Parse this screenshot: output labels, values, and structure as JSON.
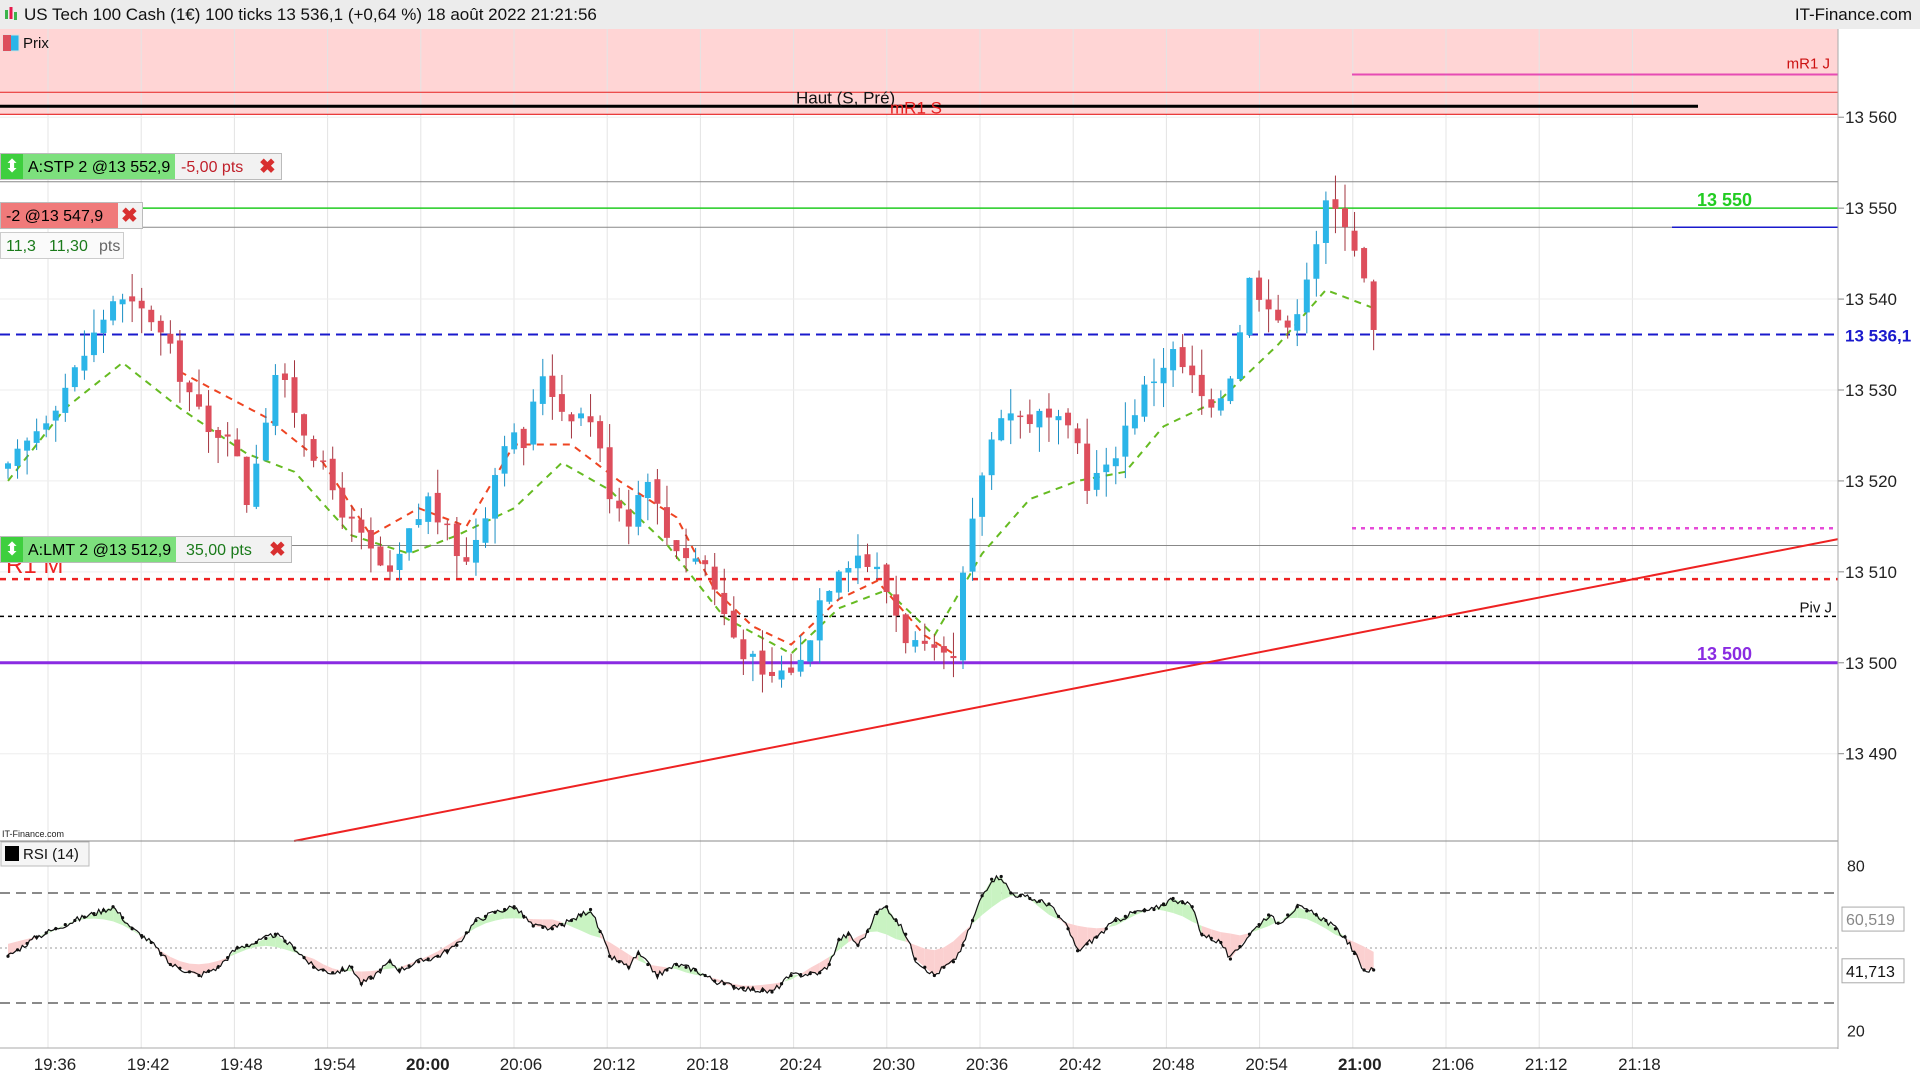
{
  "header": {
    "title": "US Tech 100 Cash (1€) 100 ticks 13 536,1 (+0,64 %) 18 août 2022 21:21:56",
    "brand": "IT-Finance.com"
  },
  "legend": {
    "price_label": "Prix",
    "rsi_label": "RSI (14)",
    "watermark": "IT-Finance.com"
  },
  "colors": {
    "bull": "#2bb5e8",
    "bear": "#dd4e5c",
    "resistance_zone": "#ffd5d5",
    "avg_fast": "#ee4422",
    "avg_slow": "#66bb22",
    "trendline": "#ee2222",
    "level_13550": "#22cc22",
    "level_13500": "#8a2be2",
    "current": "#1a1acc"
  },
  "orders": [
    {
      "type": "stop",
      "label": "A:STP 2 @13 552,9",
      "delta": "-5,00 pts"
    },
    {
      "type": "position",
      "label": "-2 @13 547,9",
      "pnl": "11,3",
      "pnl_pts": "11,30",
      "pnl_unit": "pts"
    },
    {
      "type": "limit",
      "label": "A:LMT 2 @13 512,9",
      "delta": "35,00 pts"
    }
  ],
  "annotations": {
    "haut": "Haut (S, Pré)",
    "mr1s": "mR1 S",
    "mr1j": "mR1 J",
    "r1m": "R1 M",
    "pivj": "Piv J",
    "level_13550": "13 550",
    "level_13500": "13 500",
    "current_price": "13 536,1",
    "rsi_a": "60,519",
    "rsi_b": "41,713"
  },
  "chart_data": [
    {
      "type": "candlestick",
      "title": "US Tech 100 Cash (1€) 100 ticks",
      "x_tick_labels": [
        "19:36",
        "19:42",
        "19:48",
        "19:54",
        "20:00",
        "20:06",
        "20:12",
        "20:18",
        "20:24",
        "20:30",
        "20:36",
        "20:42",
        "20:48",
        "20:54",
        "21:00",
        "21:06",
        "21:12",
        "21:18"
      ],
      "y_tick_labels": [
        "13 490",
        "13 500",
        "13 510",
        "13 520",
        "13 530",
        "13 540",
        "13 550",
        "13 560"
      ],
      "ylim": [
        13480.4,
        13569.7
      ],
      "price_path": [
        [
          0,
          13521
        ],
        [
          7,
          13532
        ],
        [
          11,
          13540
        ],
        [
          15,
          13538
        ],
        [
          18,
          13532
        ],
        [
          21,
          13525
        ],
        [
          23,
          13526
        ],
        [
          25,
          13518
        ],
        [
          28,
          13532
        ],
        [
          30,
          13528
        ],
        [
          33,
          13521
        ],
        [
          36,
          13515
        ],
        [
          38,
          13512
        ],
        [
          40,
          13509
        ],
        [
          42,
          13514
        ],
        [
          44,
          13518
        ],
        [
          46,
          13514
        ],
        [
          48,
          13511
        ],
        [
          50,
          13517
        ],
        [
          52,
          13525
        ],
        [
          54,
          13524
        ],
        [
          56,
          13532
        ],
        [
          58,
          13528
        ],
        [
          61,
          13527
        ],
        [
          63,
          13519
        ],
        [
          65,
          13516
        ],
        [
          67,
          13521
        ],
        [
          68,
          13517
        ],
        [
          69,
          13514
        ],
        [
          71,
          13512
        ],
        [
          73,
          13511
        ],
        [
          74,
          13508
        ],
        [
          76,
          13503
        ],
        [
          78,
          13500
        ],
        [
          79,
          13498
        ],
        [
          81,
          13499
        ],
        [
          83,
          13500
        ],
        [
          85,
          13507
        ],
        [
          87,
          13511
        ],
        [
          89,
          13512
        ],
        [
          91,
          13510
        ],
        [
          92,
          13508
        ],
        [
          94,
          13503
        ],
        [
          96,
          13501
        ],
        [
          98,
          13500
        ],
        [
          99,
          13500
        ],
        [
          100,
          13509
        ],
        [
          102,
          13521
        ],
        [
          104,
          13528
        ],
        [
          106,
          13527
        ],
        [
          108,
          13527
        ],
        [
          110,
          13526
        ],
        [
          112,
          13524
        ],
        [
          113,
          13520
        ],
        [
          115,
          13521
        ],
        [
          117,
          13526
        ],
        [
          119,
          13530
        ],
        [
          121,
          13533
        ],
        [
          122,
          13534
        ],
        [
          124,
          13531
        ],
        [
          126,
          13527
        ],
        [
          128,
          13532
        ],
        [
          130,
          13542
        ],
        [
          132,
          13540
        ],
        [
          134,
          13536
        ],
        [
          136,
          13543
        ],
        [
          138,
          13550
        ],
        [
          140,
          13549
        ],
        [
          141,
          13546
        ],
        [
          142,
          13542
        ],
        [
          143,
          13536
        ]
      ],
      "avg_fast_path": [
        [
          18,
          13532
        ],
        [
          27,
          13527
        ],
        [
          33,
          13522
        ],
        [
          38,
          13514
        ],
        [
          43,
          13517
        ],
        [
          48,
          13515
        ],
        [
          53,
          13524
        ],
        [
          59,
          13524
        ],
        [
          64,
          13520
        ],
        [
          70,
          13516
        ],
        [
          74,
          13508
        ],
        [
          78,
          13504
        ],
        [
          82,
          13502
        ],
        [
          87,
          13507
        ],
        [
          91,
          13509
        ],
        [
          96,
          13503
        ],
        [
          99,
          13501
        ]
      ],
      "avg_slow_path": [
        [
          0,
          13520
        ],
        [
          6,
          13528
        ],
        [
          12,
          13533
        ],
        [
          18,
          13528
        ],
        [
          25,
          13523
        ],
        [
          30,
          13521
        ],
        [
          36,
          13514
        ],
        [
          42,
          13512
        ],
        [
          47,
          13514
        ],
        [
          53,
          13517
        ],
        [
          58,
          13522
        ],
        [
          63,
          13519
        ],
        [
          69,
          13513
        ],
        [
          75,
          13505
        ],
        [
          82,
          13501
        ],
        [
          87,
          13506
        ],
        [
          92,
          13508
        ],
        [
          97,
          13503
        ],
        [
          102,
          13512
        ],
        [
          107,
          13518
        ],
        [
          112,
          13520
        ],
        [
          117,
          13521
        ],
        [
          121,
          13526
        ],
        [
          127,
          13529
        ],
        [
          133,
          13535
        ],
        [
          138,
          13541
        ],
        [
          143,
          13539
        ]
      ],
      "levels": {
        "haut_s_pre": 13561.2,
        "mr1_j": 13564.7,
        "stop_order": 13552.9,
        "level_13550": 13550.0,
        "position_entry": 13547.9,
        "current": 13536.1,
        "magenta_dotted": 13514.8,
        "limit_order": 13512.9,
        "r1_m": 13509.2,
        "piv_j": 13505.1,
        "level_13500": 13500.0
      },
      "trendline": [
        [
          13480.4,
          0.16
        ],
        [
          13513.6,
          1.0
        ]
      ]
    },
    {
      "type": "line",
      "title": "RSI (14)",
      "y_tick_labels": [
        "20",
        "80"
      ],
      "ylim": [
        14,
        86
      ],
      "bands": [
        30,
        50,
        70
      ],
      "rsi_path": [
        [
          0,
          47
        ],
        [
          3,
          54
        ],
        [
          7,
          60
        ],
        [
          11,
          65
        ],
        [
          13,
          57
        ],
        [
          15,
          52
        ],
        [
          17,
          44
        ],
        [
          20,
          40
        ],
        [
          22,
          43
        ],
        [
          24,
          50
        ],
        [
          26,
          52
        ],
        [
          28,
          55
        ],
        [
          30,
          50
        ],
        [
          32,
          43
        ],
        [
          34,
          41
        ],
        [
          36,
          43
        ],
        [
          37,
          37
        ],
        [
          38,
          39
        ],
        [
          40,
          45
        ],
        [
          41,
          42
        ],
        [
          43,
          45
        ],
        [
          45,
          47
        ],
        [
          47,
          51
        ],
        [
          49,
          60
        ],
        [
          51,
          63
        ],
        [
          53,
          65
        ],
        [
          55,
          58
        ],
        [
          57,
          57
        ],
        [
          59,
          60
        ],
        [
          61,
          64
        ],
        [
          62,
          56
        ],
        [
          63,
          47
        ],
        [
          65,
          43
        ],
        [
          66,
          48
        ],
        [
          68,
          40
        ],
        [
          70,
          44
        ],
        [
          72,
          42
        ],
        [
          74,
          38
        ],
        [
          76,
          36
        ],
        [
          78,
          35
        ],
        [
          80,
          34
        ],
        [
          82,
          40
        ],
        [
          85,
          41
        ],
        [
          86,
          44
        ],
        [
          87,
          53
        ],
        [
          88,
          55
        ],
        [
          89,
          51
        ],
        [
          90,
          56
        ],
        [
          91,
          63
        ],
        [
          92,
          65
        ],
        [
          94,
          55
        ],
        [
          95,
          46
        ],
        [
          97,
          40
        ],
        [
          98,
          43
        ],
        [
          99,
          45
        ],
        [
          100,
          51
        ],
        [
          102,
          69
        ],
        [
          103,
          75
        ],
        [
          104,
          76
        ],
        [
          105,
          70
        ],
        [
          107,
          68
        ],
        [
          109,
          66
        ],
        [
          111,
          57
        ],
        [
          112,
          49
        ],
        [
          114,
          54
        ],
        [
          116,
          60
        ],
        [
          118,
          63
        ],
        [
          120,
          64
        ],
        [
          122,
          68
        ],
        [
          124,
          65
        ],
        [
          125,
          55
        ],
        [
          127,
          52
        ],
        [
          128,
          46
        ],
        [
          130,
          55
        ],
        [
          132,
          62
        ],
        [
          133,
          59
        ],
        [
          135,
          65
        ],
        [
          137,
          62
        ],
        [
          138,
          60
        ],
        [
          139,
          57
        ],
        [
          140,
          54
        ],
        [
          141,
          48
        ],
        [
          142,
          42
        ],
        [
          143,
          42
        ]
      ],
      "readouts": [
        60.519,
        41.713
      ]
    }
  ]
}
